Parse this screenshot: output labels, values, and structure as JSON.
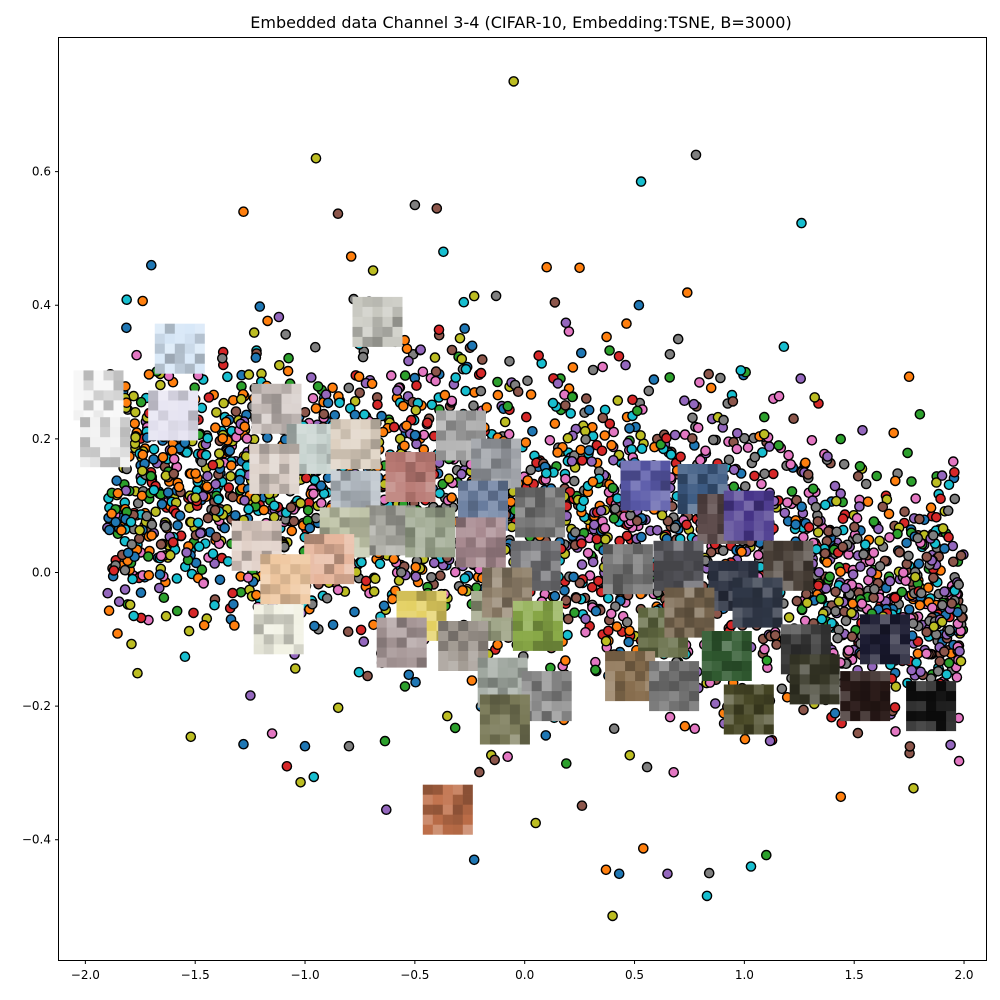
{
  "chart_data": {
    "type": "scatter",
    "title": "Embedded data Channel 3-4 (CIFAR-10, Embedding:TSNE, B=3000)",
    "xlabel": "",
    "ylabel": "",
    "xlim": [
      -2.12,
      2.1
    ],
    "ylim": [
      -0.58,
      0.8
    ],
    "x_ticks": [
      -2.0,
      -1.5,
      -1.0,
      -0.5,
      0.0,
      0.5,
      1.0,
      1.5,
      2.0
    ],
    "x_tick_labels": [
      "−2.0",
      "−1.5",
      "−1.0",
      "−0.5",
      "0.0",
      "0.5",
      "1.0",
      "1.5",
      "2.0"
    ],
    "y_ticks": [
      -0.4,
      -0.2,
      0.0,
      0.2,
      0.4,
      0.6
    ],
    "y_tick_labels": [
      "−0.4",
      "−0.2",
      "0.0",
      "0.2",
      "0.4",
      "0.6"
    ],
    "grid": false,
    "legend": "none",
    "marker_edge_color": "#000000",
    "class_colors": [
      "#1f77b4",
      "#ff7f0e",
      "#2ca02c",
      "#d62728",
      "#9467bd",
      "#8c564b",
      "#e377c2",
      "#7f7f7f",
      "#bcbd22",
      "#17becf"
    ],
    "n_points": 3000,
    "outlier_points": [
      {
        "x": -0.05,
        "y": 0.735,
        "c": 8
      },
      {
        "x": 0.78,
        "y": 0.625,
        "c": 7
      },
      {
        "x": -0.95,
        "y": 0.62,
        "c": 8
      },
      {
        "x": 0.53,
        "y": 0.585,
        "c": 9
      },
      {
        "x": -1.28,
        "y": 0.54,
        "c": 1
      },
      {
        "x": -0.5,
        "y": 0.55,
        "c": 7
      },
      {
        "x": -0.4,
        "y": 0.545,
        "c": 5
      },
      {
        "x": -0.85,
        "y": 0.537,
        "c": 5
      },
      {
        "x": 1.26,
        "y": 0.523,
        "c": 9
      },
      {
        "x": -0.37,
        "y": 0.48,
        "c": 9
      },
      {
        "x": -0.79,
        "y": 0.473,
        "c": 1
      },
      {
        "x": -1.7,
        "y": 0.46,
        "c": 0
      },
      {
        "x": 0.25,
        "y": 0.456,
        "c": 1
      },
      {
        "x": 0.1,
        "y": 0.457,
        "c": 1
      },
      {
        "x": -0.69,
        "y": 0.452,
        "c": 8
      },
      {
        "x": 0.74,
        "y": 0.419,
        "c": 1
      },
      {
        "x": -0.13,
        "y": 0.414,
        "c": 7
      },
      {
        "x": 0.52,
        "y": 0.4,
        "c": 0
      },
      {
        "x": 1.18,
        "y": 0.338,
        "c": 9
      },
      {
        "x": 1.75,
        "y": 0.293,
        "c": 1
      },
      {
        "x": 1.32,
        "y": 0.262,
        "c": 8
      },
      {
        "x": 1.68,
        "y": 0.209,
        "c": 1
      },
      {
        "x": 1.9,
        "y": 0.145,
        "c": 4
      },
      {
        "x": 1.85,
        "y": 0.097,
        "c": 1
      },
      {
        "x": -1.88,
        "y": 0.088,
        "c": 1
      },
      {
        "x": -1.87,
        "y": 0.003,
        "c": 3
      },
      {
        "x": -1.78,
        "y": -0.065,
        "c": 9
      },
      {
        "x": -1.79,
        "y": -0.107,
        "c": 8
      },
      {
        "x": -1.52,
        "y": -0.246,
        "c": 8
      },
      {
        "x": -1.28,
        "y": -0.257,
        "c": 0
      },
      {
        "x": -1.0,
        "y": -0.26,
        "c": 0
      },
      {
        "x": -1.15,
        "y": -0.241,
        "c": 6
      },
      {
        "x": -0.8,
        "y": -0.26,
        "c": 7
      },
      {
        "x": -0.96,
        "y": -0.306,
        "c": 9
      },
      {
        "x": -1.02,
        "y": -0.314,
        "c": 8
      },
      {
        "x": -0.63,
        "y": -0.355,
        "c": 4
      },
      {
        "x": -0.23,
        "y": -0.43,
        "c": 0
      },
      {
        "x": 0.05,
        "y": -0.375,
        "c": 8
      },
      {
        "x": 0.37,
        "y": -0.445,
        "c": 1
      },
      {
        "x": 0.43,
        "y": -0.451,
        "c": 0
      },
      {
        "x": 0.54,
        "y": -0.413,
        "c": 1
      },
      {
        "x": 0.4,
        "y": -0.514,
        "c": 8
      },
      {
        "x": 0.65,
        "y": -0.451,
        "c": 4
      },
      {
        "x": 0.83,
        "y": -0.484,
        "c": 9
      },
      {
        "x": 0.84,
        "y": -0.45,
        "c": 7
      },
      {
        "x": 1.03,
        "y": -0.44,
        "c": 9
      },
      {
        "x": 1.1,
        "y": -0.423,
        "c": 2
      },
      {
        "x": 1.77,
        "y": -0.323,
        "c": 8
      },
      {
        "x": 1.98,
        "y": -0.118,
        "c": 4
      },
      {
        "x": 1.9,
        "y": -0.074,
        "c": 8
      }
    ],
    "thumbnails": [
      {
        "x": -1.94,
        "y": 0.265,
        "color": "#f7f7f7"
      },
      {
        "x": -1.91,
        "y": 0.195,
        "color": "#f0f0f0"
      },
      {
        "x": -1.57,
        "y": 0.335,
        "color": "#d8e8f8"
      },
      {
        "x": -1.6,
        "y": 0.235,
        "color": "#e6e4f2"
      },
      {
        "x": -0.67,
        "y": 0.375,
        "color": "#c8c8c0"
      },
      {
        "x": -1.13,
        "y": 0.245,
        "color": "#d2c8c4"
      },
      {
        "x": -0.97,
        "y": 0.185,
        "color": "#c8d4d0"
      },
      {
        "x": -0.77,
        "y": 0.192,
        "color": "#ddd0c0"
      },
      {
        "x": -0.29,
        "y": 0.205,
        "color": "#a8a8a8"
      },
      {
        "x": -0.13,
        "y": 0.163,
        "color": "#9a9ea4"
      },
      {
        "x": -1.14,
        "y": 0.155,
        "color": "#dcd0c8"
      },
      {
        "x": -0.77,
        "y": 0.115,
        "color": "#b8c0c8"
      },
      {
        "x": -0.52,
        "y": 0.143,
        "color": "#b87872"
      },
      {
        "x": -0.61,
        "y": 0.063,
        "color": "#a8a8a0"
      },
      {
        "x": -0.43,
        "y": 0.06,
        "color": "#9ea890"
      },
      {
        "x": -0.82,
        "y": 0.06,
        "color": "#c0c4a8"
      },
      {
        "x": -0.19,
        "y": 0.1,
        "color": "#6a7ea0"
      },
      {
        "x": -0.2,
        "y": 0.045,
        "color": "#a88a90"
      },
      {
        "x": 0.07,
        "y": 0.09,
        "color": "#787878"
      },
      {
        "x": 0.05,
        "y": 0.01,
        "color": "#7a7a7e"
      },
      {
        "x": -1.22,
        "y": 0.04,
        "color": "#e0cfc6"
      },
      {
        "x": -0.89,
        "y": 0.02,
        "color": "#e6b49a"
      },
      {
        "x": -1.09,
        "y": -0.01,
        "color": "#f0c8a0"
      },
      {
        "x": -1.12,
        "y": -0.085,
        "color": "#f2f2e4"
      },
      {
        "x": 0.55,
        "y": 0.13,
        "color": "#5858a8"
      },
      {
        "x": 0.81,
        "y": 0.125,
        "color": "#3c5a82"
      },
      {
        "x": 0.9,
        "y": 0.08,
        "color": "#5a4848"
      },
      {
        "x": 1.02,
        "y": 0.085,
        "color": "#48368c"
      },
      {
        "x": 0.47,
        "y": 0.005,
        "color": "#6a6a6a"
      },
      {
        "x": 0.7,
        "y": 0.01,
        "color": "#5a5a60"
      },
      {
        "x": 1.2,
        "y": 0.01,
        "color": "#4a4038"
      },
      {
        "x": 0.95,
        "y": -0.02,
        "color": "#2a3040"
      },
      {
        "x": 1.06,
        "y": -0.045,
        "color": "#303848"
      },
      {
        "x": -0.47,
        "y": -0.065,
        "color": "#e4d060"
      },
      {
        "x": -0.56,
        "y": -0.105,
        "color": "#a89898"
      },
      {
        "x": -0.13,
        "y": -0.065,
        "color": "#9aa080"
      },
      {
        "x": -0.08,
        "y": -0.03,
        "color": "#90806a"
      },
      {
        "x": 0.06,
        "y": -0.08,
        "color": "#8aaa48"
      },
      {
        "x": 0.63,
        "y": -0.09,
        "color": "#606840"
      },
      {
        "x": 0.75,
        "y": -0.06,
        "color": "#7a6850"
      },
      {
        "x": -0.28,
        "y": -0.11,
        "color": "#a09890"
      },
      {
        "x": -0.1,
        "y": -0.165,
        "color": "#a0a8a0"
      },
      {
        "x": 0.48,
        "y": -0.155,
        "color": "#8a7050"
      },
      {
        "x": 0.68,
        "y": -0.17,
        "color": "#707070"
      },
      {
        "x": 0.92,
        "y": -0.125,
        "color": "#305a30"
      },
      {
        "x": 1.28,
        "y": -0.115,
        "color": "#383838"
      },
      {
        "x": 1.64,
        "y": -0.1,
        "color": "#1a1a30"
      },
      {
        "x": 1.32,
        "y": -0.16,
        "color": "#383828"
      },
      {
        "x": 1.02,
        "y": -0.205,
        "color": "#4a4a28"
      },
      {
        "x": 1.55,
        "y": -0.185,
        "color": "#2a1a18"
      },
      {
        "x": 1.85,
        "y": -0.2,
        "color": "#0e0e0e"
      },
      {
        "x": 0.1,
        "y": -0.185,
        "color": "#8a8a8a"
      },
      {
        "x": -0.09,
        "y": -0.22,
        "color": "#7a7a58"
      },
      {
        "x": -0.35,
        "y": -0.355,
        "color": "#c0704a"
      }
    ]
  }
}
